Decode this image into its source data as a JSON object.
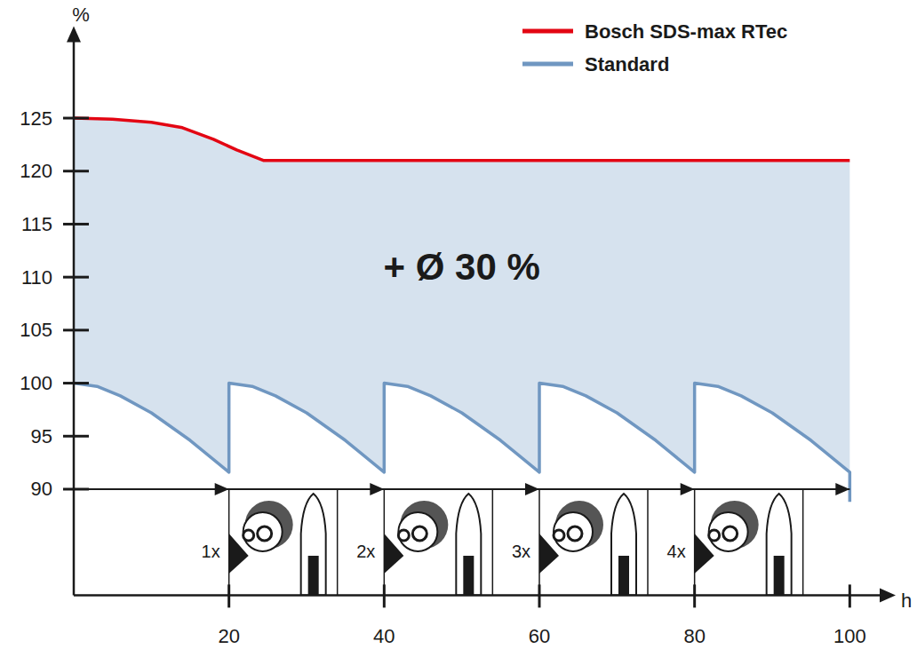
{
  "chart_data": {
    "type": "line",
    "x_label": "h",
    "y_label": "%",
    "xlim": [
      0,
      105
    ],
    "ylim": [
      80,
      133
    ],
    "xticks": [
      20,
      40,
      60,
      80,
      100
    ],
    "yticks": [
      90,
      95,
      100,
      105,
      110,
      115,
      120,
      125
    ],
    "legend": "top-right",
    "series": [
      {
        "name": "Bosch SDS-max RTec",
        "color": "#e30613",
        "x": [
          0,
          5,
          10,
          14,
          18,
          21,
          24.5,
          100
        ],
        "values": [
          125,
          124.9,
          124.6,
          124.1,
          123.0,
          122.0,
          121.0,
          121.0
        ]
      },
      {
        "name": "Standard",
        "color": "#7097c1",
        "x": [
          0,
          3,
          6,
          10,
          15,
          20,
          20,
          23,
          26,
          30,
          35,
          40,
          40,
          43,
          46,
          50,
          55,
          60,
          60,
          63,
          66,
          70,
          75,
          80,
          80,
          83,
          86,
          90,
          95,
          100,
          100
        ],
        "values": [
          100,
          99.7,
          98.8,
          97.2,
          94.6,
          91.6,
          100,
          99.7,
          98.8,
          97.2,
          94.6,
          91.6,
          100,
          99.7,
          98.8,
          97.2,
          94.6,
          91.6,
          100,
          99.7,
          98.8,
          97.2,
          94.6,
          91.6,
          100,
          99.7,
          98.8,
          97.2,
          94.6,
          91.6,
          88.8
        ]
      }
    ],
    "annotations": [
      {
        "text": "+ Ø 30 %",
        "x": 50,
        "y": 111
      }
    ],
    "regrind_markers": [
      {
        "x": 20,
        "label": "1x"
      },
      {
        "x": 40,
        "label": "2x"
      },
      {
        "x": 60,
        "label": "3x"
      },
      {
        "x": 80,
        "label": "4x"
      }
    ]
  }
}
